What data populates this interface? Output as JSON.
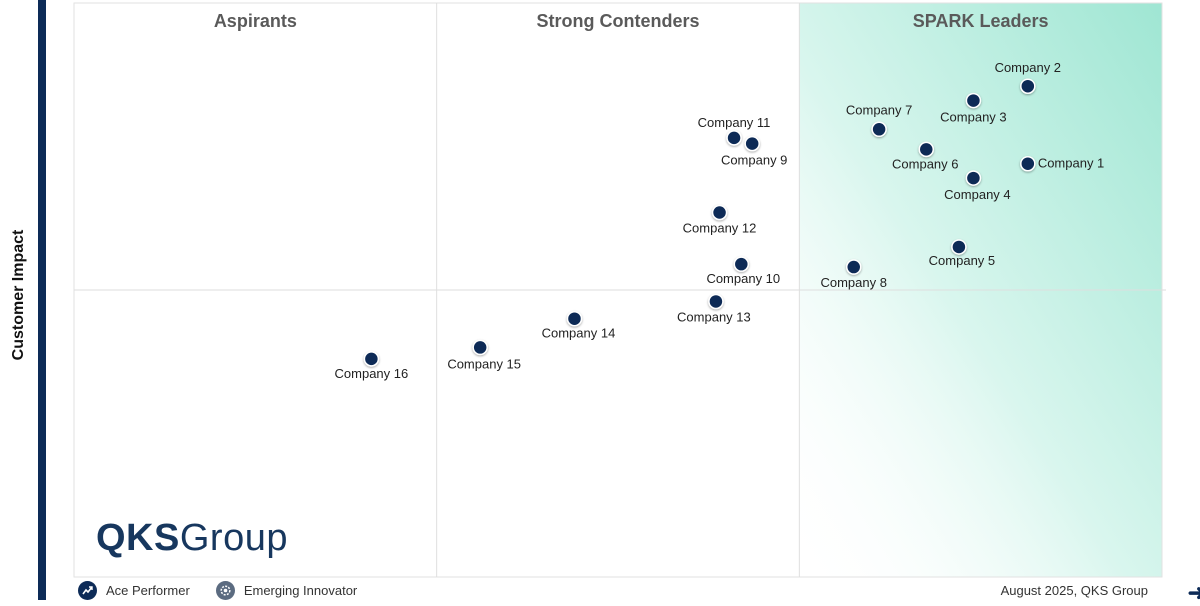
{
  "chart_data": {
    "type": "scatter",
    "ylabel": "Customer Impact",
    "xlabel": "",
    "xlim": [
      0,
      3
    ],
    "ylim": [
      0,
      2
    ],
    "grid": true,
    "quadrants": [
      "Aspirants",
      "Strong Contenders",
      "SPARK Leaders"
    ],
    "points": [
      {
        "label": "Company 1",
        "x": 2.63,
        "y": 1.44
      },
      {
        "label": "Company 2",
        "x": 2.63,
        "y": 1.71
      },
      {
        "label": "Company 3",
        "x": 2.48,
        "y": 1.66
      },
      {
        "label": "Company 4",
        "x": 2.48,
        "y": 1.39
      },
      {
        "label": "Company 5",
        "x": 2.44,
        "y": 1.15
      },
      {
        "label": "Company 6",
        "x": 2.35,
        "y": 1.49
      },
      {
        "label": "Company 7",
        "x": 2.22,
        "y": 1.56
      },
      {
        "label": "Company 8",
        "x": 2.15,
        "y": 1.08
      },
      {
        "label": "Company 9",
        "x": 1.87,
        "y": 1.51
      },
      {
        "label": "Company 10",
        "x": 1.84,
        "y": 1.09
      },
      {
        "label": "Company 11",
        "x": 1.82,
        "y": 1.53
      },
      {
        "label": "Company 12",
        "x": 1.78,
        "y": 1.27
      },
      {
        "label": "Company 13",
        "x": 1.77,
        "y": 0.96
      },
      {
        "label": "Company 14",
        "x": 1.38,
        "y": 0.9
      },
      {
        "label": "Company 15",
        "x": 1.12,
        "y": 0.8
      },
      {
        "label": "Company 16",
        "x": 0.82,
        "y": 0.76
      }
    ],
    "legend": [
      "Ace Performer",
      "Emerging Innovator"
    ]
  },
  "brand": {
    "bold": "QKS",
    "rest": "Group"
  },
  "footnote": "August 2025, QKS Group",
  "colors": {
    "point": "#0d2b57",
    "leader_gradient": "#a8ead8",
    "grid": "#dddddd"
  }
}
